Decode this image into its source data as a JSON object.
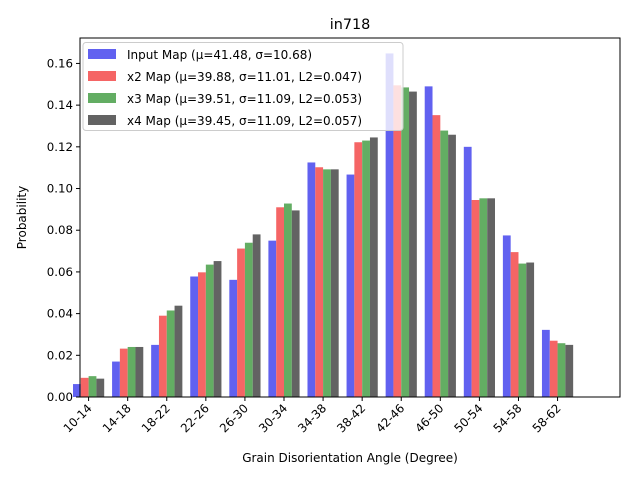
{
  "chart_data": {
    "type": "bar",
    "title": "in718",
    "xlabel": "Grain Disorientation Angle (Degree)",
    "ylabel": "Probability",
    "ylim": [
      0,
      0.1722
    ],
    "yticks": [
      0.0,
      0.02,
      0.04,
      0.06,
      0.08,
      0.1,
      0.12,
      0.14,
      0.16
    ],
    "ytick_labels": [
      "0.00",
      "0.02",
      "0.04",
      "0.06",
      "0.08",
      "0.10",
      "0.12",
      "0.14",
      "0.16"
    ],
    "grid": false,
    "legend_position": "top-left",
    "categories": [
      "10-14",
      "14-18",
      "18-22",
      "22-26",
      "26-30",
      "30-34",
      "34-38",
      "38-42",
      "42-46",
      "46-50",
      "50-54",
      "54-58",
      "58-62"
    ],
    "series": [
      {
        "name": "Input Map (μ=41.48, σ=10.68)",
        "color": "#6161f0",
        "values": [
          0.0062,
          0.017,
          0.025,
          0.0578,
          0.0562,
          0.075,
          0.1125,
          0.1067,
          0.1648,
          0.149,
          0.12,
          0.0775,
          0.0322
        ]
      },
      {
        "name": "x2 Map (μ=39.88, σ=11.01, L2=0.047)",
        "color": "#f56565",
        "values": [
          0.0092,
          0.0232,
          0.039,
          0.0598,
          0.0712,
          0.091,
          0.1102,
          0.1222,
          0.1495,
          0.1352,
          0.0945,
          0.0695,
          0.027
        ]
      },
      {
        "name": "x3 Map (μ=39.51, σ=11.09, L2=0.053)",
        "color": "#63ad63",
        "values": [
          0.01,
          0.024,
          0.0415,
          0.0635,
          0.074,
          0.0928,
          0.1092,
          0.123,
          0.1485,
          0.1278,
          0.0953,
          0.064,
          0.0258
        ]
      },
      {
        "name": "x4 Map (μ=39.45, σ=11.09, L2=0.057)",
        "color": "#636363",
        "values": [
          0.0088,
          0.024,
          0.0438,
          0.0652,
          0.078,
          0.0895,
          0.1092,
          0.1245,
          0.1465,
          0.1258,
          0.0953,
          0.0645,
          0.025
        ]
      }
    ]
  }
}
